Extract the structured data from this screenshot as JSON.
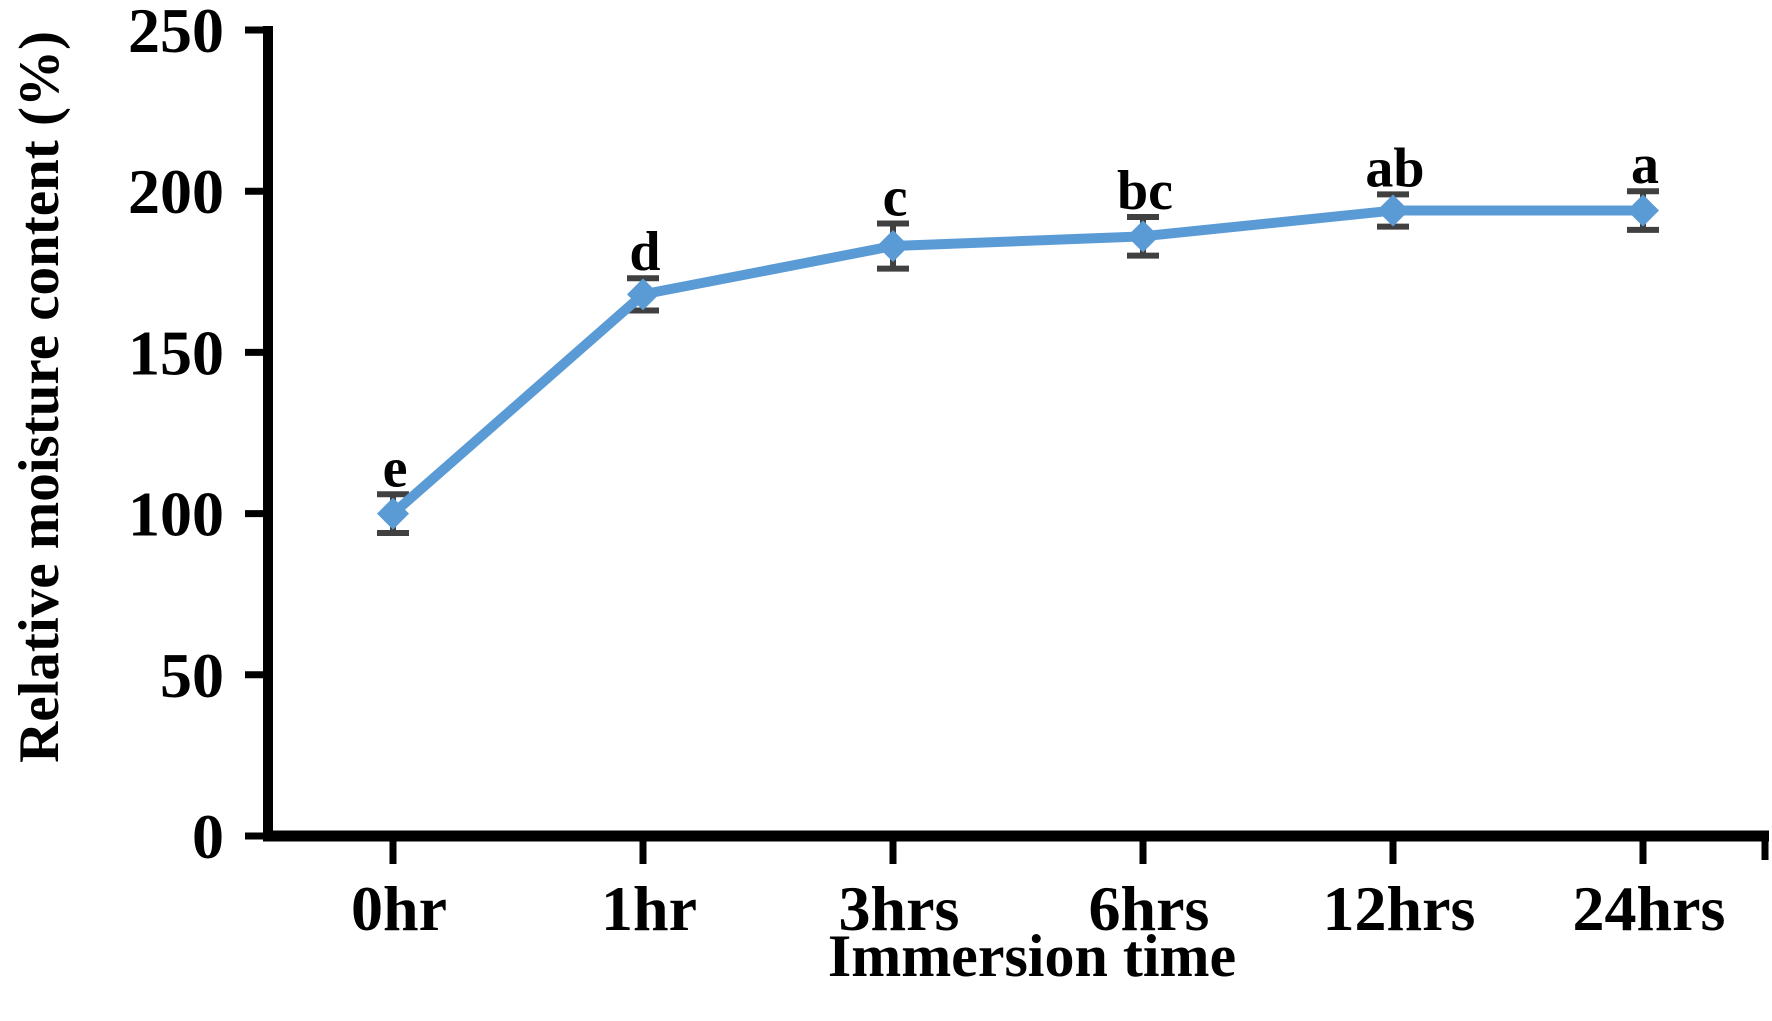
{
  "chart_data": {
    "type": "line",
    "title": "",
    "xlabel": "Immersion time",
    "ylabel": "Relative moisture content (%)",
    "categories": [
      "0hr",
      "1hr",
      "3hrs",
      "6hrs",
      "12hrs",
      "24hrs"
    ],
    "series": [
      {
        "name": "Relative moisture content",
        "values": [
          100,
          168,
          183,
          186,
          194,
          194
        ],
        "error_bars": [
          6,
          5,
          7,
          6,
          5,
          6
        ],
        "point_labels": [
          "e",
          "d",
          "c",
          "bc",
          "ab",
          "a"
        ],
        "color": "#5b9bd5",
        "marker": "diamond"
      }
    ],
    "y_ticks": [
      0,
      50,
      100,
      150,
      200,
      250
    ],
    "ylim": [
      0,
      250
    ],
    "grid": false,
    "legend": false,
    "colors": {
      "series_line": "#5b9bd5",
      "error_bar": "#404040",
      "axis": "#000000",
      "text": "#000000",
      "background": "#ffffff"
    }
  }
}
